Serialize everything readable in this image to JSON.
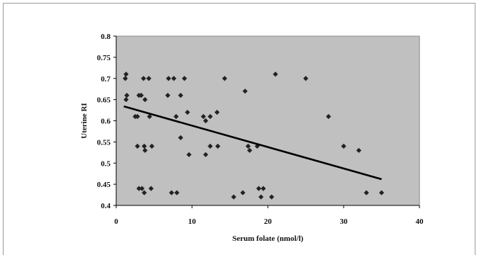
{
  "chart_data": {
    "type": "scatter",
    "title": "",
    "xlabel": "Serum folate (nmol/l)",
    "ylabel": "Uterine RI",
    "xlim": [
      0,
      40
    ],
    "ylim": [
      0.4,
      0.8
    ],
    "x_ticks": [
      "0",
      "10",
      "20",
      "30",
      "40"
    ],
    "y_ticks": [
      "0.4",
      "0.45",
      "0.5",
      "0.55",
      "0.6",
      "0.65",
      "0.7",
      "0.75",
      "0.8"
    ],
    "grid": false,
    "legend": "none",
    "colors": {
      "plot_background": "#c0c0c0",
      "points": "#222222",
      "trendline": "#000000"
    },
    "points": [
      {
        "x": 1.3,
        "y": 0.71
      },
      {
        "x": 1.2,
        "y": 0.7
      },
      {
        "x": 1.4,
        "y": 0.66
      },
      {
        "x": 1.3,
        "y": 0.65
      },
      {
        "x": 2.5,
        "y": 0.61
      },
      {
        "x": 2.8,
        "y": 0.61
      },
      {
        "x": 3.0,
        "y": 0.66
      },
      {
        "x": 3.3,
        "y": 0.66
      },
      {
        "x": 3.6,
        "y": 0.7
      },
      {
        "x": 4.3,
        "y": 0.7
      },
      {
        "x": 3.8,
        "y": 0.65
      },
      {
        "x": 4.4,
        "y": 0.61
      },
      {
        "x": 2.8,
        "y": 0.54
      },
      {
        "x": 3.7,
        "y": 0.54
      },
      {
        "x": 3.8,
        "y": 0.53
      },
      {
        "x": 4.7,
        "y": 0.54
      },
      {
        "x": 3.0,
        "y": 0.44
      },
      {
        "x": 3.4,
        "y": 0.44
      },
      {
        "x": 3.7,
        "y": 0.43
      },
      {
        "x": 4.6,
        "y": 0.44
      },
      {
        "x": 6.9,
        "y": 0.7
      },
      {
        "x": 7.6,
        "y": 0.7
      },
      {
        "x": 9.0,
        "y": 0.7
      },
      {
        "x": 6.8,
        "y": 0.66
      },
      {
        "x": 8.5,
        "y": 0.66
      },
      {
        "x": 7.9,
        "y": 0.61
      },
      {
        "x": 9.4,
        "y": 0.62
      },
      {
        "x": 8.5,
        "y": 0.56
      },
      {
        "x": 9.6,
        "y": 0.52
      },
      {
        "x": 7.3,
        "y": 0.43
      },
      {
        "x": 8.0,
        "y": 0.43
      },
      {
        "x": 11.5,
        "y": 0.61
      },
      {
        "x": 11.8,
        "y": 0.6
      },
      {
        "x": 12.4,
        "y": 0.61
      },
      {
        "x": 13.3,
        "y": 0.62
      },
      {
        "x": 14.3,
        "y": 0.7
      },
      {
        "x": 11.8,
        "y": 0.52
      },
      {
        "x": 12.4,
        "y": 0.54
      },
      {
        "x": 13.4,
        "y": 0.54
      },
      {
        "x": 15.5,
        "y": 0.42
      },
      {
        "x": 16.7,
        "y": 0.43
      },
      {
        "x": 17.0,
        "y": 0.67
      },
      {
        "x": 17.4,
        "y": 0.54
      },
      {
        "x": 17.6,
        "y": 0.53
      },
      {
        "x": 18.6,
        "y": 0.54
      },
      {
        "x": 18.8,
        "y": 0.44
      },
      {
        "x": 19.1,
        "y": 0.42
      },
      {
        "x": 19.4,
        "y": 0.44
      },
      {
        "x": 20.5,
        "y": 0.42
      },
      {
        "x": 21.0,
        "y": 0.71
      },
      {
        "x": 25.0,
        "y": 0.7
      },
      {
        "x": 28.0,
        "y": 0.61
      },
      {
        "x": 30.0,
        "y": 0.54
      },
      {
        "x": 32.0,
        "y": 0.53
      },
      {
        "x": 33.0,
        "y": 0.43
      },
      {
        "x": 35.0,
        "y": 0.43
      }
    ],
    "trendline": {
      "x": [
        1.0,
        35.0
      ],
      "y": [
        0.634,
        0.462
      ]
    }
  }
}
